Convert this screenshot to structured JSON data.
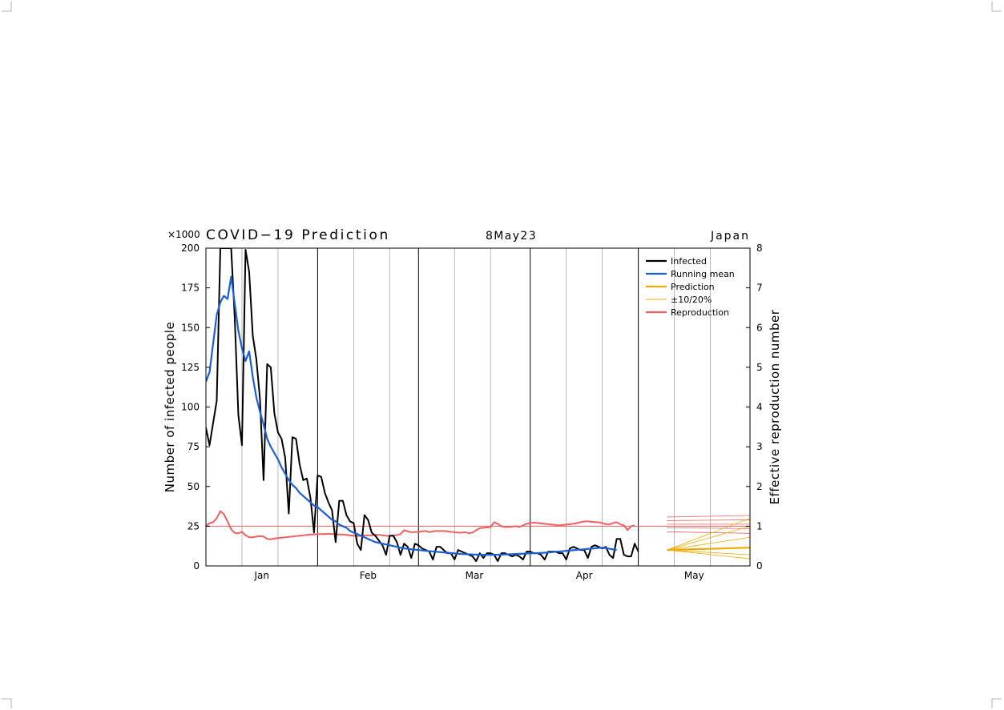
{
  "header": {
    "multiplier": "×1000",
    "title": "COVID−19 Prediction",
    "date": "8May23",
    "region": "Japan"
  },
  "chart_data": {
    "type": "line",
    "x_axis": {
      "months": [
        {
          "label": "Jan",
          "start": "2023-01-01",
          "end": "2023-01-31"
        },
        {
          "label": "Feb",
          "start": "2023-02-01",
          "end": "2023-02-28"
        },
        {
          "label": "Mar",
          "start": "2023-03-01",
          "end": "2023-03-31"
        },
        {
          "label": "Apr",
          "start": "2023-04-01",
          "end": "2023-04-30"
        },
        {
          "label": "May",
          "start": "2023-05-01",
          "end": "2023-05-31"
        }
      ],
      "range": [
        "2023-01-01",
        "2023-05-31"
      ],
      "minor_gridlines": [
        "2023-01-11",
        "2023-01-21",
        "2023-02-11",
        "2023-02-21",
        "2023-03-11",
        "2023-03-21",
        "2023-04-11",
        "2023-04-21",
        "2023-05-11",
        "2023-05-21"
      ]
    },
    "y_left": {
      "label": "Number of infected people",
      "range": [
        0,
        200
      ],
      "ticks": [
        0,
        25,
        50,
        75,
        100,
        125,
        150,
        175,
        200
      ],
      "unit": "×1000"
    },
    "y_right": {
      "label": "Effective reproduction number",
      "range": [
        0,
        8
      ],
      "ticks": [
        0,
        1,
        2,
        3,
        4,
        5,
        6,
        7,
        8
      ],
      "reference_line": 1
    },
    "legend": {
      "position": "top-right",
      "entries": [
        {
          "name": "Infected",
          "color": "#000000"
        },
        {
          "name": "Running mean",
          "color": "#1a5fd6"
        },
        {
          "name": "Prediction",
          "color": "#f2a900"
        },
        {
          "name": "±10/20%",
          "color": "#f2a900"
        },
        {
          "name": "Reproduction",
          "color": "#f06060"
        }
      ]
    },
    "series": [
      {
        "name": "Infected",
        "axis": "left",
        "color": "#000000",
        "start": "2023-01-01",
        "values": [
          87,
          76,
          90,
          104,
          200,
          200,
          200,
          200,
          156,
          95,
          76,
          199,
          185,
          145,
          130,
          105,
          54,
          127,
          125,
          96,
          84,
          80,
          68,
          33,
          81,
          80,
          64,
          54,
          55,
          43,
          21,
          57,
          56,
          46,
          40,
          35,
          15,
          41,
          41,
          32,
          28,
          27,
          14,
          10,
          32,
          29,
          21,
          19,
          16,
          13,
          7,
          19,
          19,
          15,
          7,
          14,
          12,
          5,
          14,
          13,
          11,
          10,
          9,
          4,
          12,
          12,
          10,
          8,
          8,
          4,
          10,
          9,
          8,
          7,
          6,
          3,
          8,
          5,
          8,
          8,
          7,
          3,
          8,
          8,
          7,
          6,
          7,
          6,
          4,
          9,
          9,
          8,
          8,
          7,
          4,
          9,
          9,
          9,
          8,
          8,
          4,
          11,
          12,
          11,
          10,
          10,
          5,
          12,
          13,
          12,
          11,
          12,
          7,
          5,
          17,
          17,
          7,
          6,
          6,
          14,
          9
        ]
      },
      {
        "name": "Running mean",
        "axis": "left",
        "color": "#1a5fd6",
        "start": "2023-01-01",
        "values": [
          116,
          122,
          140,
          158,
          166,
          170,
          168,
          182,
          165,
          148,
          137,
          129,
          135,
          119,
          106,
          97,
          89,
          80,
          75,
          71,
          67,
          62,
          58,
          54,
          51,
          49,
          46,
          44,
          42,
          40,
          38,
          37,
          35,
          33,
          31,
          29,
          28,
          26,
          25,
          24,
          22,
          21,
          20,
          19,
          18,
          17,
          16,
          15,
          14.5,
          14,
          13.5,
          13,
          12.5,
          12,
          11.5,
          11,
          10.8,
          10.5,
          10.2,
          10,
          9.8,
          9.5,
          9.3,
          9.1,
          8.9,
          8.7,
          8.5,
          8.3,
          8.1,
          7.9,
          7.7,
          7.5,
          7.4,
          7.3,
          7.2,
          7.1,
          7,
          7,
          7,
          7,
          7,
          7,
          7.1,
          7.2,
          7.3,
          7.4,
          7.5,
          7.6,
          7.7,
          7.8,
          7.9,
          8,
          8.1,
          8.2,
          8.3,
          8.5,
          8.7,
          8.9,
          9.1,
          9.3,
          9.5,
          9.7,
          9.9,
          10.1,
          10.3,
          10.5,
          10.7,
          10.9,
          11.1,
          11.3,
          11.5,
          11.2,
          10.8,
          10.4,
          10
        ]
      },
      {
        "name": "Reproduction",
        "axis": "right",
        "color": "#f06060",
        "start": "2023-01-01",
        "values": [
          1.0,
          1.08,
          1.1,
          1.2,
          1.38,
          1.3,
          1.12,
          0.92,
          0.83,
          0.82,
          0.86,
          0.77,
          0.72,
          0.72,
          0.74,
          0.75,
          0.74,
          0.68,
          0.67,
          0.69,
          0.7,
          0.71,
          0.72,
          0.73,
          0.74,
          0.75,
          0.76,
          0.77,
          0.78,
          0.79,
          0.79,
          0.8,
          0.8,
          0.8,
          0.81,
          0.8,
          0.8,
          0.79,
          0.79,
          0.78,
          0.77,
          0.76,
          0.75,
          0.76,
          0.77,
          0.77,
          0.77,
          0.78,
          0.78,
          0.77,
          0.76,
          0.75,
          0.76,
          0.78,
          0.8,
          0.9,
          0.87,
          0.85,
          0.85,
          0.86,
          0.87,
          0.88,
          0.85,
          0.87,
          0.88,
          0.88,
          0.88,
          0.87,
          0.86,
          0.85,
          0.84,
          0.84,
          0.85,
          0.82,
          0.84,
          0.9,
          0.95,
          0.96,
          0.97,
          0.98,
          1.1,
          1.06,
          1.0,
          0.98,
          0.98,
          0.99,
          1.0,
          0.98,
          1.02,
          1.06,
          1.08,
          1.09,
          1.08,
          1.07,
          1.06,
          1.05,
          1.04,
          1.03,
          1.02,
          1.03,
          1.04,
          1.05,
          1.06,
          1.08,
          1.1,
          1.12,
          1.12,
          1.11,
          1.1,
          1.1,
          1.08,
          1.05,
          1.05,
          1.08,
          1.1,
          1.05,
          1.02,
          0.9,
          1.0,
          1.02
        ]
      },
      {
        "name": "Prediction",
        "axis": "left",
        "color": "#f2a900",
        "start": "2023-05-09",
        "end": "2023-05-31",
        "start_value": 10,
        "end_value": 11.5,
        "band_end_values": [
          30,
          25,
          18,
          11.5,
          7,
          4.5
        ]
      },
      {
        "name": "Reproduction scenarios",
        "axis": "right",
        "color": "#f06060",
        "start": "2023-05-09",
        "end": "2023-05-31",
        "levels": [
          1.23,
          1.14,
          1.05,
          0.96,
          0.86
        ]
      }
    ]
  }
}
